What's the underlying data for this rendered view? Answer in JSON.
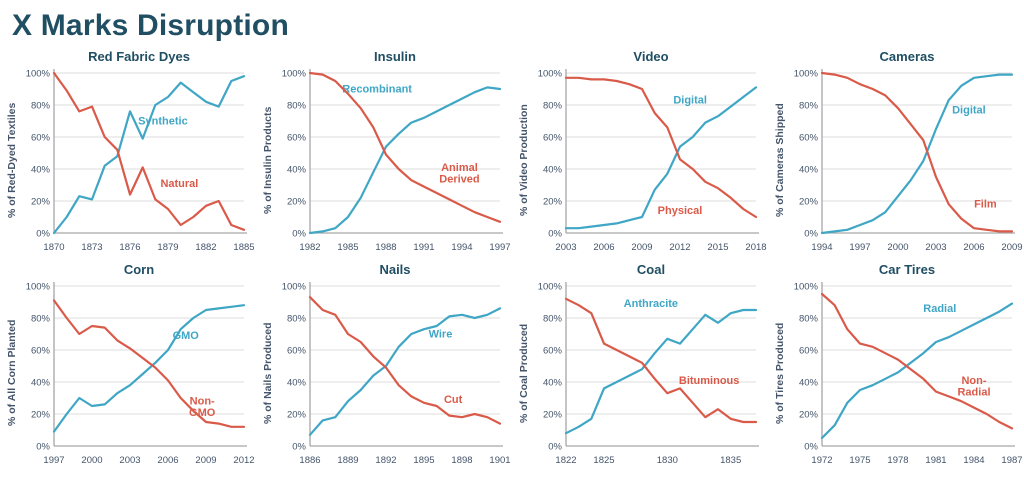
{
  "page_title": "X Marks Disruption",
  "colors": {
    "teal": "#3FA6C6",
    "orange": "#DA5A49",
    "heading": "#204E63",
    "axis_text": "#44546A",
    "grid_line": "#DCDCDC",
    "axis_line": "#A6A6A6"
  },
  "chart_data": [
    {
      "type": "line",
      "title": "Red Fabric Dyes",
      "ylabel": "% of Red-Dyed Textiles",
      "ylim": [
        0,
        100
      ],
      "y_ticks": [
        0,
        20,
        40,
        60,
        80,
        100
      ],
      "x_start": 1870,
      "x_end": 1885,
      "x_ticks": [
        1870,
        1873,
        1876,
        1879,
        1882,
        1885
      ],
      "series": [
        {
          "name": "Synthetic",
          "color": "teal",
          "label_lines": [
            "Synthetic"
          ],
          "label_x": 1878.6,
          "label_y": 70,
          "values": [
            0,
            10,
            23,
            21,
            42,
            48,
            76,
            59,
            80,
            85,
            94,
            88,
            82,
            79,
            95,
            98
          ]
        },
        {
          "name": "Natural",
          "color": "orange",
          "label_lines": [
            "Natural"
          ],
          "label_x": 1879.9,
          "label_y": 31,
          "values": [
            100,
            89,
            76,
            79,
            60,
            52,
            24,
            41,
            21,
            15,
            5,
            10,
            17,
            20,
            5,
            2
          ]
        }
      ]
    },
    {
      "type": "line",
      "title": "Insulin",
      "ylabel": "% of Insulin Products",
      "ylim": [
        0,
        100
      ],
      "y_ticks": [
        0,
        20,
        40,
        60,
        80,
        100
      ],
      "x_start": 1982,
      "x_end": 1997,
      "x_ticks": [
        1982,
        1985,
        1988,
        1991,
        1994,
        1997
      ],
      "series": [
        {
          "name": "Recombinant",
          "color": "teal",
          "label_lines": [
            "Recombinant"
          ],
          "label_x": 1987.3,
          "label_y": 90,
          "values": [
            0,
            1,
            3,
            10,
            22,
            38,
            54,
            62,
            69,
            72,
            76,
            80,
            84,
            88,
            91,
            90
          ]
        },
        {
          "name": "Animal Derived",
          "color": "orange",
          "label_lines": [
            "Animal",
            "Derived"
          ],
          "label_x": 1993.8,
          "label_y": 41,
          "values": [
            100,
            99,
            95,
            87,
            78,
            66,
            49,
            40,
            33,
            29,
            25,
            21,
            17,
            13,
            10,
            7
          ]
        }
      ]
    },
    {
      "type": "line",
      "title": "Video",
      "ylabel": "% of Video Production",
      "ylim": [
        0,
        100
      ],
      "y_ticks": [
        0,
        20,
        40,
        60,
        80,
        100
      ],
      "x_start": 2003,
      "x_end": 2018,
      "x_ticks": [
        2003,
        2006,
        2009,
        2012,
        2015,
        2018
      ],
      "series": [
        {
          "name": "Digital",
          "color": "teal",
          "label_lines": [
            "Digital"
          ],
          "label_x": 2012.8,
          "label_y": 83,
          "values": [
            3,
            3,
            4,
            5,
            6,
            8,
            10,
            27,
            37,
            54,
            60,
            69,
            73,
            79,
            85,
            91
          ]
        },
        {
          "name": "Physical",
          "color": "orange",
          "label_lines": [
            "Physical"
          ],
          "label_x": 2012.0,
          "label_y": 14,
          "values": [
            97,
            97,
            96,
            96,
            95,
            93,
            90,
            75,
            66,
            46,
            40,
            32,
            28,
            22,
            15,
            10
          ]
        }
      ]
    },
    {
      "type": "line",
      "title": "Cameras",
      "ylabel": "% of Cameras Shipped",
      "ylim": [
        0,
        100
      ],
      "y_ticks": [
        0,
        20,
        40,
        60,
        80,
        100
      ],
      "x_start": 1994,
      "x_end": 2009,
      "x_ticks": [
        1994,
        1997,
        2000,
        2003,
        2006,
        2009
      ],
      "series": [
        {
          "name": "Digital",
          "color": "teal",
          "label_lines": [
            "Digital"
          ],
          "label_x": 2005.6,
          "label_y": 77,
          "values": [
            0,
            1,
            2,
            5,
            8,
            13,
            23,
            33,
            45,
            65,
            83,
            92,
            97,
            98,
            99,
            99
          ]
        },
        {
          "name": "Film",
          "color": "orange",
          "label_lines": [
            "Film"
          ],
          "label_x": 2006.9,
          "label_y": 18,
          "values": [
            100,
            99,
            97,
            93,
            90,
            86,
            78,
            68,
            58,
            35,
            18,
            9,
            3,
            2,
            1,
            1
          ]
        }
      ]
    },
    {
      "type": "line",
      "title": "Corn",
      "ylabel": "% of All Corn Planted",
      "ylim": [
        0,
        100
      ],
      "y_ticks": [
        0,
        20,
        40,
        60,
        80,
        100
      ],
      "x_start": 1997,
      "x_end": 2012,
      "x_ticks": [
        1997,
        2000,
        2003,
        2006,
        2009,
        2012
      ],
      "series": [
        {
          "name": "GMO",
          "color": "teal",
          "label_lines": [
            "GMO"
          ],
          "label_x": 2007.4,
          "label_y": 69,
          "values": [
            9,
            20,
            30,
            25,
            26,
            33,
            38,
            45,
            52,
            60,
            73,
            80,
            85,
            86,
            87,
            88
          ]
        },
        {
          "name": "Non-GMO",
          "color": "orange",
          "label_lines": [
            "Non-",
            "GMO"
          ],
          "label_x": 2008.7,
          "label_y": 28,
          "values": [
            91,
            80,
            70,
            75,
            74,
            66,
            61,
            55,
            49,
            41,
            30,
            22,
            15,
            14,
            12,
            12
          ]
        }
      ]
    },
    {
      "type": "line",
      "title": "Nails",
      "ylabel": "% of Nails Produced",
      "ylim": [
        0,
        100
      ],
      "y_ticks": [
        0,
        20,
        40,
        60,
        80,
        100
      ],
      "x_start": 1886,
      "x_end": 1901,
      "x_ticks": [
        1886,
        1889,
        1892,
        1895,
        1898,
        1901
      ],
      "series": [
        {
          "name": "Wire",
          "color": "teal",
          "label_lines": [
            "Wire"
          ],
          "label_x": 1896.3,
          "label_y": 70,
          "values": [
            7,
            16,
            18,
            28,
            35,
            44,
            50,
            62,
            70,
            73,
            75,
            81,
            82,
            80,
            82,
            86
          ]
        },
        {
          "name": "Cut",
          "color": "orange",
          "label_lines": [
            "Cut"
          ],
          "label_x": 1897.3,
          "label_y": 29,
          "values": [
            93,
            85,
            82,
            70,
            65,
            56,
            49,
            38,
            31,
            27,
            25,
            19,
            18,
            20,
            18,
            14
          ]
        }
      ]
    },
    {
      "type": "line",
      "title": "Coal",
      "ylabel": "% of Coal Produced",
      "ylim": [
        0,
        100
      ],
      "y_ticks": [
        0,
        20,
        40,
        60,
        80,
        100
      ],
      "x_start": 1822,
      "x_end": 1837,
      "x_ticks": [
        1822,
        1825,
        1830,
        1835
      ],
      "series": [
        {
          "name": "Anthracite",
          "color": "teal",
          "label_lines": [
            "Anthracite"
          ],
          "label_x": 1828.7,
          "label_y": 89,
          "values": [
            8,
            12,
            17,
            36,
            40,
            44,
            48,
            58,
            67,
            64,
            73,
            82,
            77,
            83,
            85,
            85
          ]
        },
        {
          "name": "Bituminous",
          "color": "orange",
          "label_lines": [
            "Bituminous"
          ],
          "label_x": 1833.3,
          "label_y": 41,
          "values": [
            92,
            88,
            83,
            64,
            60,
            56,
            52,
            42,
            33,
            36,
            27,
            18,
            23,
            17,
            15,
            15
          ]
        }
      ]
    },
    {
      "type": "line",
      "title": "Car Tires",
      "ylabel": "% of Tires Produced",
      "ylim": [
        0,
        100
      ],
      "y_ticks": [
        0,
        20,
        40,
        60,
        80,
        100
      ],
      "x_start": 1972,
      "x_end": 1987,
      "x_ticks": [
        1972,
        1975,
        1978,
        1981,
        1984,
        1987
      ],
      "series": [
        {
          "name": "Radial",
          "color": "teal",
          "label_lines": [
            "Radial"
          ],
          "label_x": 1981.3,
          "label_y": 86,
          "values": [
            5,
            13,
            27,
            35,
            38,
            42,
            46,
            52,
            58,
            65,
            68,
            72,
            76,
            80,
            84,
            89
          ]
        },
        {
          "name": "Non-Radial",
          "color": "orange",
          "label_lines": [
            "Non-",
            "Radial"
          ],
          "label_x": 1984.0,
          "label_y": 41,
          "values": [
            95,
            88,
            73,
            64,
            62,
            58,
            54,
            48,
            42,
            34,
            31,
            28,
            24,
            20,
            15,
            11
          ]
        }
      ]
    }
  ]
}
